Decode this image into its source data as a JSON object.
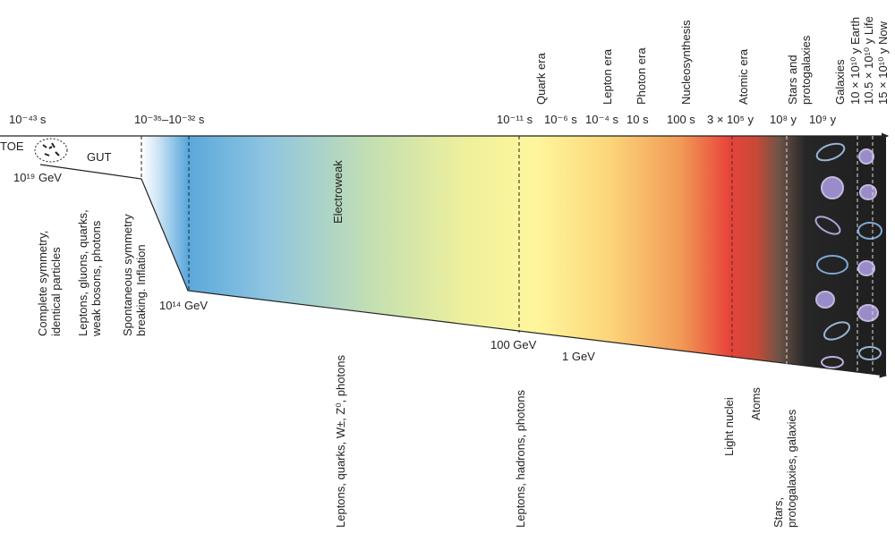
{
  "diagram": {
    "time_labels": [
      "10⁻⁴³ s",
      "10⁻³⁵–10⁻³² s",
      "10⁻¹¹ s",
      "10⁻⁶ s",
      "10⁻⁴ s",
      "10 s",
      "100 s",
      "3 × 10⁵ y",
      "10⁸ y",
      "10⁹ y"
    ],
    "era_labels": [
      [
        "Quark era"
      ],
      [
        "Lepton era"
      ],
      [
        "Photon era"
      ],
      [
        "Nucleosynthesis"
      ],
      [
        "Atomic era"
      ],
      [
        "Stars and",
        "protogalaxies"
      ],
      [
        "Galaxies"
      ],
      [
        "10 × 10¹⁰ y Earth"
      ],
      [
        "10.5 × 10¹⁰ y Life"
      ],
      [
        "15 × 10¹⁰ y Now"
      ]
    ],
    "phase_labels": [
      "TOE",
      "GUT",
      "Electroweak"
    ],
    "energy_labels": [
      "10¹⁹ GeV",
      "10¹⁴ GeV",
      "100 GeV",
      "1  GeV"
    ],
    "state_labels": [
      [
        "Complete symmetry,",
        "identical particles"
      ],
      [
        "Leptons, gluons, quarks,",
        "weak bosons, photons"
      ],
      [
        "Spontaneous symmetry",
        "breaking. Inflation"
      ],
      [
        "Leptons, quarks, W±, Z⁰, photons"
      ],
      [
        "Leptons, hadrons, photons"
      ],
      [
        "Light nuclei"
      ],
      [
        "Atoms"
      ],
      [
        "Stars,",
        "protogalaxies, galaxies"
      ]
    ]
  }
}
